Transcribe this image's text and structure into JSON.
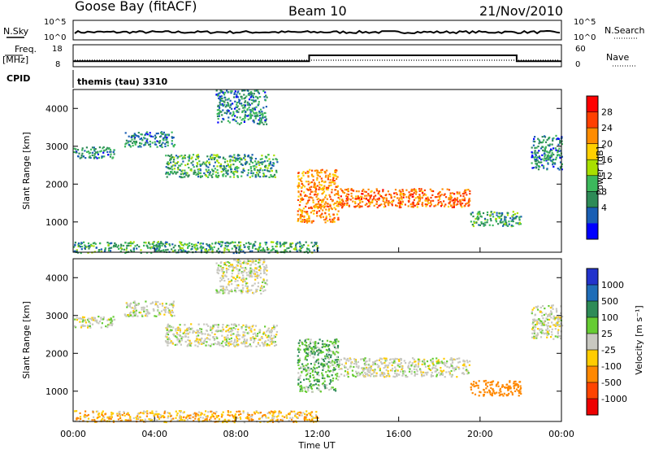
{
  "header": {
    "station": "Goose Bay (fitACF)",
    "beam": "Beam 10",
    "date": "21/Nov/2010"
  },
  "noise_panel": {
    "left_label": "N.Sky",
    "right_label": "N.Search",
    "left_ticks": [
      "10^5",
      "10^0"
    ],
    "right_ticks": [
      "10^5",
      "10^0"
    ]
  },
  "freq_panel": {
    "left_label_1": "Freq.",
    "left_label_2": "[MHz]",
    "right_label": "Nave",
    "left_ticks": [
      "18",
      "8"
    ],
    "right_ticks": [
      "60",
      "0"
    ]
  },
  "cpid_panel": {
    "label": "CPID",
    "program": "themis (tau) 3310"
  },
  "power_panel": {
    "ylabel": "Slant Range [km]",
    "yticks": [
      "4000",
      "3000",
      "2000",
      "1000"
    ],
    "colorbar_label": "Power [dB]",
    "colorbar_ticks": [
      "28",
      "24",
      "20",
      "16",
      "12",
      "8",
      "4"
    ],
    "colorbar_colors": [
      "#ff0000",
      "#ff4000",
      "#ff8c00",
      "#ffd000",
      "#a8e000",
      "#3cb85c",
      "#2e8b57",
      "#1a5fb4",
      "#0000ff"
    ]
  },
  "velocity_panel": {
    "ylabel": "Slant Range [km]",
    "yticks": [
      "4000",
      "3000",
      "2000",
      "1000"
    ],
    "colorbar_label": "Velocity [m s⁻¹]",
    "colorbar_ticks": [
      "1000",
      "500",
      "100",
      "25",
      "-25",
      "-100",
      "-500",
      "-1000"
    ],
    "colorbar_colors": [
      "#2233cc",
      "#1f6db8",
      "#2e8b57",
      "#66cc33",
      "#c8c8c0",
      "#ffcc00",
      "#ff8800",
      "#ff4400",
      "#ee0000"
    ]
  },
  "xaxis": {
    "label": "Time UT",
    "ticks": [
      "00:00",
      "04:00",
      "08:00",
      "12:00",
      "16:00",
      "20:00",
      "00:00"
    ]
  },
  "chart_data": {
    "type": "heatmap",
    "title": "Goose Bay (fitACF)  Beam 10  21/Nov/2010",
    "xlabel": "Time UT",
    "ylabel": "Slant Range [km]",
    "x_range_hours": [
      0,
      24
    ],
    "y_range_km": [
      200,
      4500
    ],
    "frequency_mhz": {
      "segments": [
        {
          "start_h": 0,
          "end_h": 11.6,
          "value": 10.5
        },
        {
          "start_h": 11.6,
          "end_h": 21.8,
          "value": 13.2
        },
        {
          "start_h": 21.8,
          "end_h": 24,
          "value": 10.5
        }
      ]
    },
    "power_scatter_regions_db": [
      {
        "t_start_h": 7.0,
        "t_end_h": 9.5,
        "r_min_km": 3600,
        "r_max_km": 4500,
        "power_db": 8
      },
      {
        "t_start_h": 0.0,
        "t_end_h": 2.0,
        "r_min_km": 2700,
        "r_max_km": 3000,
        "power_db": 8
      },
      {
        "t_start_h": 2.5,
        "t_end_h": 5.0,
        "r_min_km": 3000,
        "r_max_km": 3400,
        "power_db": 8
      },
      {
        "t_start_h": 4.5,
        "t_end_h": 10.0,
        "r_min_km": 2200,
        "r_max_km": 2800,
        "power_db": 10
      },
      {
        "t_start_h": 11.0,
        "t_end_h": 13.0,
        "r_min_km": 1000,
        "r_max_km": 2400,
        "power_db": 20
      },
      {
        "t_start_h": 13.0,
        "t_end_h": 19.5,
        "r_min_km": 1400,
        "r_max_km": 1900,
        "power_db": 22
      },
      {
        "t_start_h": 19.5,
        "t_end_h": 22.0,
        "r_min_km": 900,
        "r_max_km": 1300,
        "power_db": 10
      },
      {
        "t_start_h": 0.0,
        "t_end_h": 12.0,
        "r_min_km": 200,
        "r_max_km": 500,
        "power_db": 10
      },
      {
        "t_start_h": 22.5,
        "t_end_h": 24.0,
        "r_min_km": 2400,
        "r_max_km": 3300,
        "power_db": 8
      }
    ],
    "velocity_scatter_regions_ms": [
      {
        "t_start_h": 7.0,
        "t_end_h": 9.5,
        "r_min_km": 3600,
        "r_max_km": 4500,
        "velocity_ms": 0
      },
      {
        "t_start_h": 0.0,
        "t_end_h": 2.0,
        "r_min_km": 2700,
        "r_max_km": 3000,
        "velocity_ms": 0
      },
      {
        "t_start_h": 2.5,
        "t_end_h": 5.0,
        "r_min_km": 3000,
        "r_max_km": 3400,
        "velocity_ms": 0
      },
      {
        "t_start_h": 4.5,
        "t_end_h": 10.0,
        "r_min_km": 2200,
        "r_max_km": 2800,
        "velocity_ms": 0
      },
      {
        "t_start_h": 11.0,
        "t_end_h": 13.0,
        "r_min_km": 1000,
        "r_max_km": 2400,
        "velocity_ms": 50
      },
      {
        "t_start_h": 13.0,
        "t_end_h": 19.5,
        "r_min_km": 1400,
        "r_max_km": 1900,
        "velocity_ms": 0
      },
      {
        "t_start_h": 19.5,
        "t_end_h": 22.0,
        "r_min_km": 900,
        "r_max_km": 1300,
        "velocity_ms": -100
      },
      {
        "t_start_h": 0.0,
        "t_end_h": 12.0,
        "r_min_km": 200,
        "r_max_km": 500,
        "velocity_ms": -50
      },
      {
        "t_start_h": 22.5,
        "t_end_h": 24.0,
        "r_min_km": 2400,
        "r_max_km": 3300,
        "velocity_ms": 0
      }
    ]
  }
}
